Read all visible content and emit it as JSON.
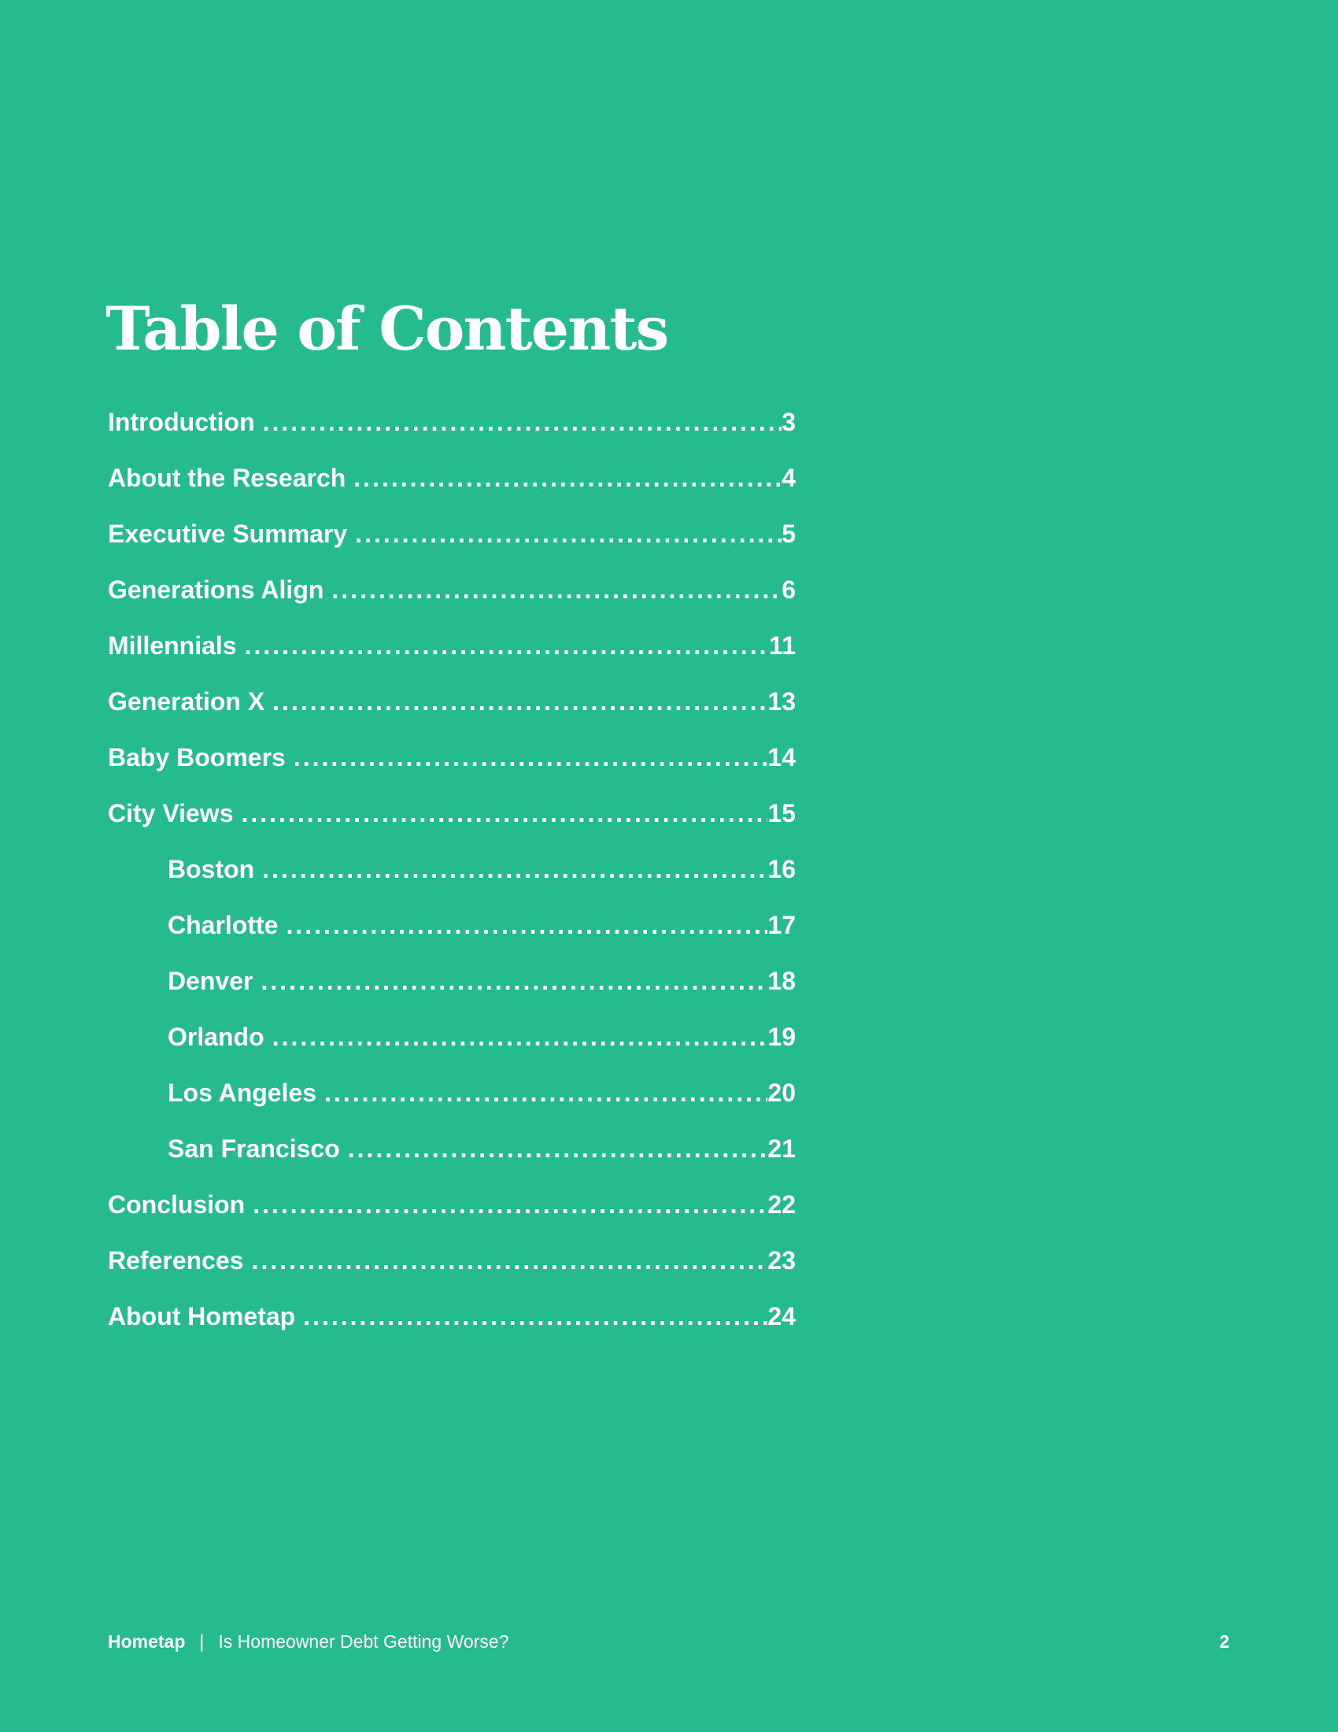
{
  "page": {
    "background_color": "#26BB8C",
    "text_color": "#FFFFFF"
  },
  "title": "Table of Contents",
  "toc": {
    "items": [
      {
        "label": "Introduction",
        "page": "3",
        "indent": false
      },
      {
        "label": "About the Research",
        "page": "4",
        "indent": false
      },
      {
        "label": "Executive Summary",
        "page": "5",
        "indent": false
      },
      {
        "label": "Generations Align",
        "page": "6",
        "indent": false
      },
      {
        "label": "Millennials",
        "page": "11",
        "indent": false
      },
      {
        "label": "Generation X",
        "page": "13",
        "indent": false
      },
      {
        "label": "Baby Boomers",
        "page": "14",
        "indent": false
      },
      {
        "label": "City Views",
        "page": "15",
        "indent": false
      },
      {
        "label": "Boston",
        "page": "16",
        "indent": true
      },
      {
        "label": "Charlotte",
        "page": "17",
        "indent": true
      },
      {
        "label": "Denver",
        "page": "18",
        "indent": true
      },
      {
        "label": "Orlando",
        "page": "19",
        "indent": true
      },
      {
        "label": "Los Angeles",
        "page": "20",
        "indent": true
      },
      {
        "label": "San Francisco",
        "page": "21",
        "indent": true
      },
      {
        "label": "Conclusion",
        "page": "22",
        "indent": false
      },
      {
        "label": "References",
        "page": "23",
        "indent": false
      },
      {
        "label": "About Hometap",
        "page": "24",
        "indent": false
      }
    ]
  },
  "footer": {
    "brand": "Hometap",
    "separator": "|",
    "document_title": "Is Homeowner Debt Getting Worse?",
    "page_number": "2"
  }
}
